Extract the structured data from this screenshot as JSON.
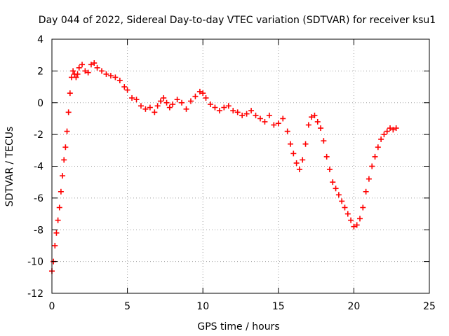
{
  "chart_data": {
    "type": "scatter",
    "title": "Day 044 of 2022, Sidereal Day-to-day VTEC variation (SDTVAR) for receiver ksu1",
    "xlabel": "GPS time / hours",
    "ylabel": "SDTVAR / TECUs",
    "xlim": [
      0,
      25
    ],
    "ylim": [
      -12,
      4
    ],
    "xticks": [
      0,
      5,
      10,
      15,
      20,
      25
    ],
    "yticks": [
      -12,
      -10,
      -8,
      -6,
      -4,
      -2,
      0,
      2,
      4
    ],
    "grid": true,
    "marker": "+",
    "color": "#ff0000",
    "series": [
      {
        "name": "SDTVAR",
        "x": [
          0.0,
          0.1,
          0.2,
          0.3,
          0.4,
          0.5,
          0.6,
          0.7,
          0.8,
          0.9,
          1.0,
          1.1,
          1.2,
          1.3,
          1.4,
          1.5,
          1.6,
          1.7,
          1.8,
          2.0,
          2.2,
          2.4,
          2.6,
          2.8,
          3.0,
          3.3,
          3.6,
          3.9,
          4.2,
          4.5,
          4.8,
          5.0,
          5.3,
          5.6,
          5.9,
          6.2,
          6.5,
          6.8,
          7.0,
          7.2,
          7.4,
          7.6,
          7.8,
          8.0,
          8.3,
          8.6,
          8.9,
          9.2,
          9.5,
          9.8,
          10.0,
          10.2,
          10.5,
          10.8,
          11.1,
          11.4,
          11.7,
          12.0,
          12.3,
          12.6,
          12.9,
          13.2,
          13.5,
          13.8,
          14.1,
          14.4,
          14.7,
          15.0,
          15.3,
          15.6,
          15.8,
          16.0,
          16.2,
          16.4,
          16.6,
          16.8,
          17.0,
          17.2,
          17.4,
          17.6,
          17.8,
          18.0,
          18.2,
          18.4,
          18.6,
          18.8,
          19.0,
          19.2,
          19.4,
          19.6,
          19.8,
          20.0,
          20.2,
          20.4,
          20.6,
          20.8,
          21.0,
          21.2,
          21.4,
          21.6,
          21.8,
          22.0,
          22.2,
          22.4,
          22.6,
          22.8
        ],
        "y": [
          -10.6,
          -10.0,
          -9.0,
          -8.2,
          -7.4,
          -6.6,
          -5.6,
          -4.6,
          -3.6,
          -2.8,
          -1.8,
          -0.6,
          0.6,
          1.6,
          2.0,
          1.8,
          1.6,
          1.8,
          2.2,
          2.4,
          2.0,
          1.9,
          2.4,
          2.5,
          2.2,
          2.0,
          1.8,
          1.7,
          1.6,
          1.4,
          1.0,
          0.8,
          0.3,
          0.2,
          -0.2,
          -0.4,
          -0.3,
          -0.6,
          -0.2,
          0.1,
          0.3,
          0.0,
          -0.3,
          -0.1,
          0.2,
          0.0,
          -0.4,
          0.1,
          0.4,
          0.7,
          0.6,
          0.3,
          -0.1,
          -0.3,
          -0.5,
          -0.3,
          -0.2,
          -0.5,
          -0.6,
          -0.8,
          -0.7,
          -0.5,
          -0.8,
          -1.0,
          -1.2,
          -0.8,
          -1.4,
          -1.3,
          -1.0,
          -1.8,
          -2.6,
          -3.2,
          -3.8,
          -4.2,
          -3.6,
          -2.6,
          -1.4,
          -0.9,
          -0.8,
          -1.2,
          -1.6,
          -2.4,
          -3.4,
          -4.2,
          -5.0,
          -5.4,
          -5.8,
          -6.2,
          -6.6,
          -7.0,
          -7.4,
          -7.8,
          -7.7,
          -7.3,
          -6.6,
          -5.6,
          -4.8,
          -4.0,
          -3.4,
          -2.8,
          -2.3,
          -2.0,
          -1.8,
          -1.6,
          -1.7,
          -1.6
        ]
      }
    ]
  }
}
